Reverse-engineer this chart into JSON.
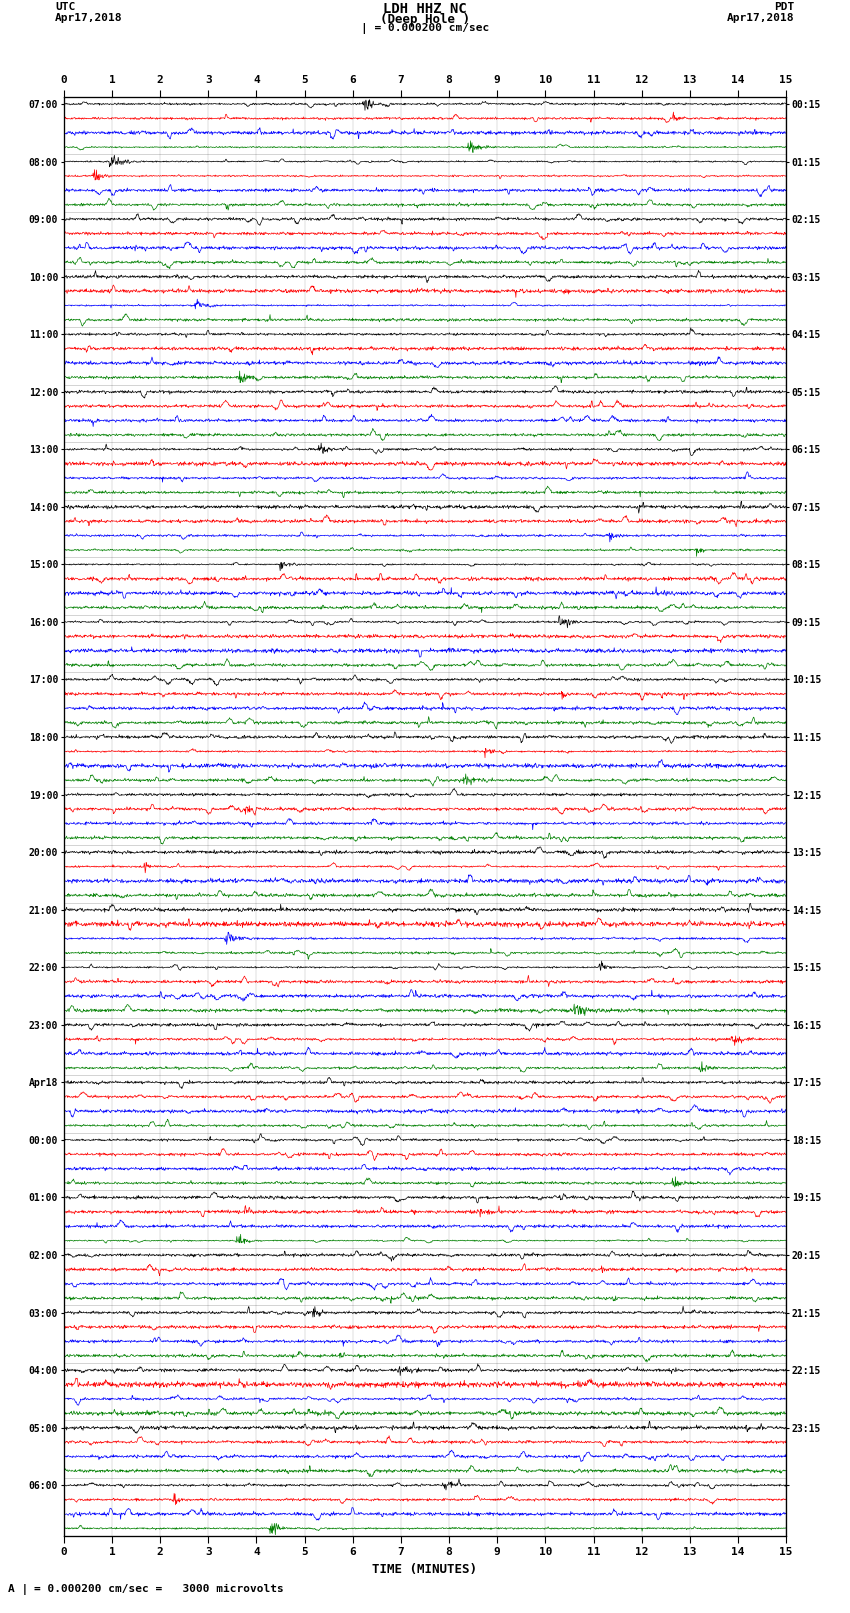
{
  "title_line1": "LDH HHZ NC",
  "title_line2": "(Deep Hole )",
  "scale_text": "| = 0.000200 cm/sec",
  "bottom_scale_text": "= 0.000200 cm/sec =   3000 microvolts",
  "bottom_scale_label": "A |",
  "utc_label": "UTC",
  "pdt_label": "PDT",
  "date_left": "Apr17,2018",
  "date_right": "Apr17,2018",
  "xlabel": "TIME (MINUTES)",
  "colors": [
    "black",
    "red",
    "blue",
    "green"
  ],
  "left_times": [
    "07:00",
    "08:00",
    "09:00",
    "10:00",
    "11:00",
    "12:00",
    "13:00",
    "14:00",
    "15:00",
    "16:00",
    "17:00",
    "18:00",
    "19:00",
    "20:00",
    "21:00",
    "22:00",
    "23:00",
    "Apr18",
    "00:00",
    "01:00",
    "02:00",
    "03:00",
    "04:00",
    "05:00",
    "06:00"
  ],
  "right_times": [
    "00:15",
    "01:15",
    "02:15",
    "03:15",
    "04:15",
    "05:15",
    "06:15",
    "07:15",
    "08:15",
    "09:15",
    "10:15",
    "11:15",
    "12:15",
    "13:15",
    "14:15",
    "15:15",
    "16:15",
    "17:15",
    "18:15",
    "19:15",
    "20:15",
    "21:15",
    "22:15",
    "23:15",
    ""
  ],
  "n_groups": 25,
  "x_min": 0,
  "x_max": 15,
  "xticks": [
    0,
    1,
    2,
    3,
    4,
    5,
    6,
    7,
    8,
    9,
    10,
    11,
    12,
    13,
    14,
    15
  ],
  "bg_color": "white",
  "seed": 42
}
